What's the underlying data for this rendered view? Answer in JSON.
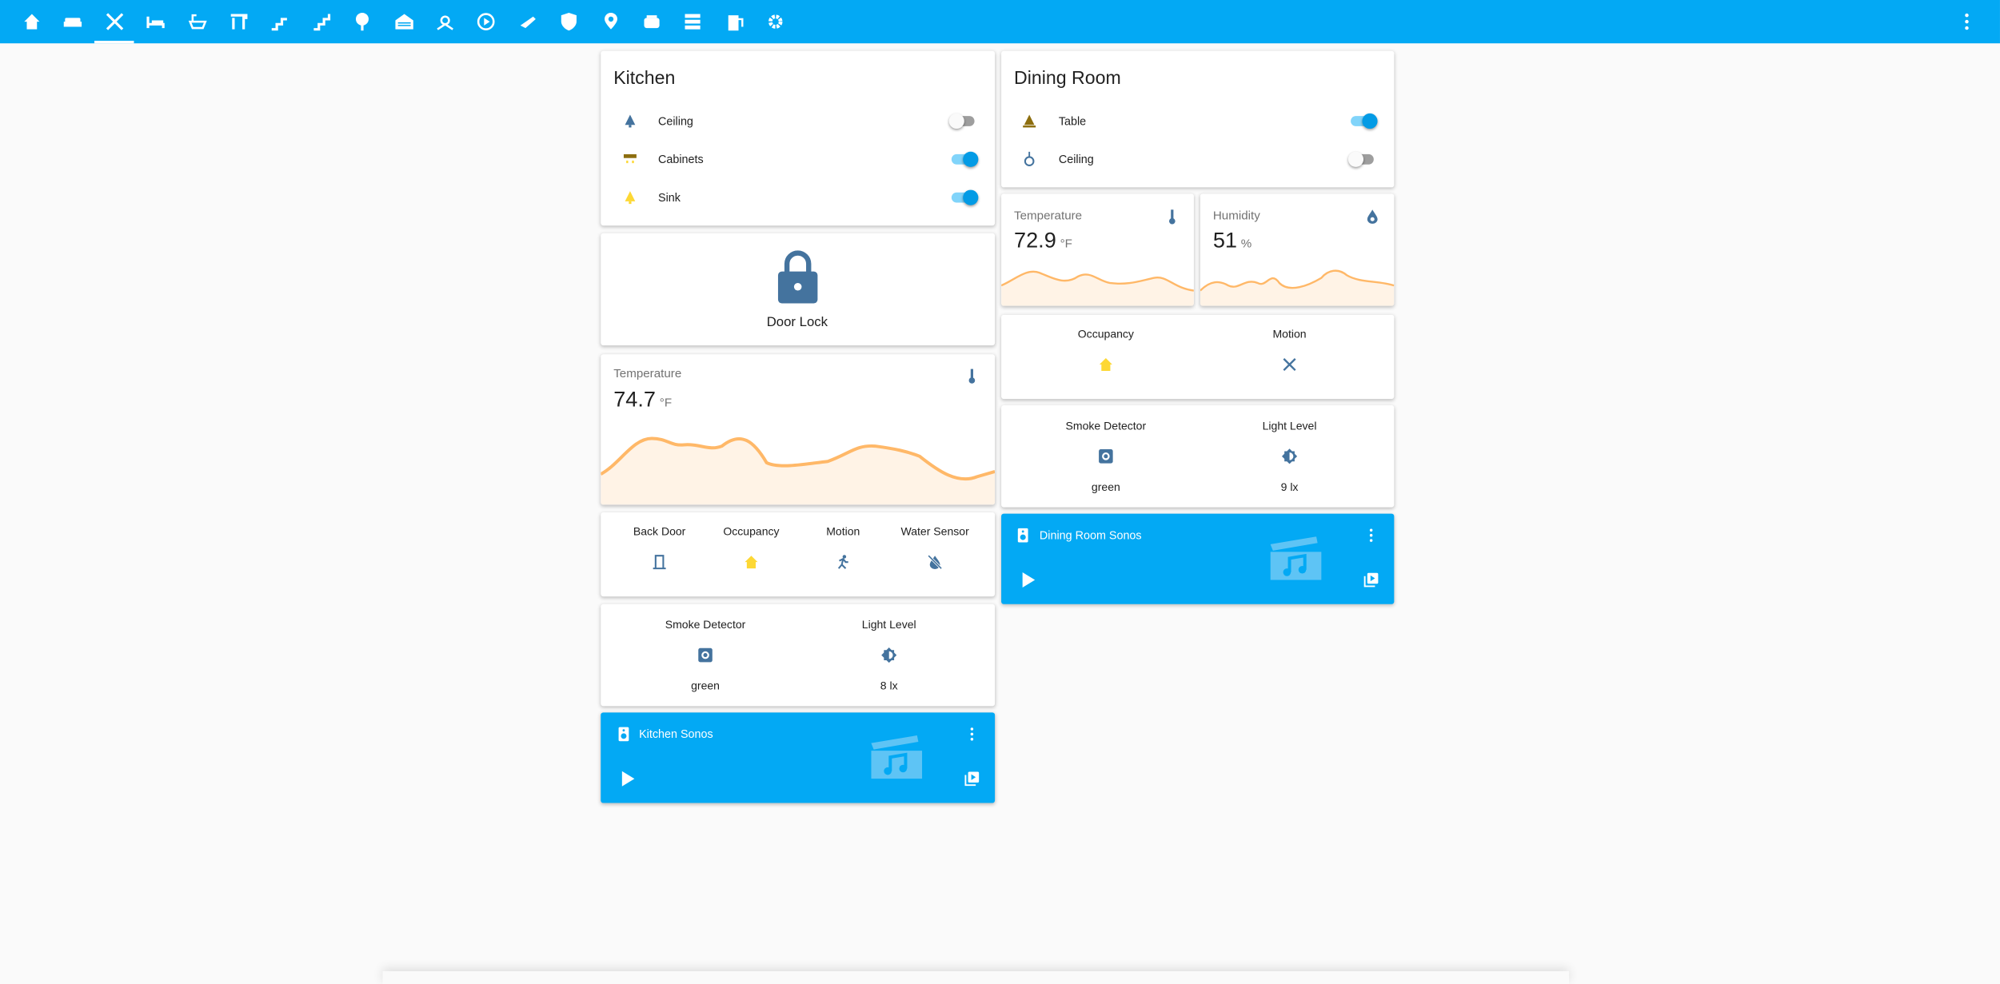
{
  "kitchen": {
    "title": "Kitchen",
    "entities": [
      {
        "name": "Ceiling",
        "on": false
      },
      {
        "name": "Cabinets",
        "on": true
      },
      {
        "name": "Sink",
        "on": true
      }
    ],
    "lock": {
      "name": "Door Lock"
    },
    "temperature": {
      "name": "Temperature",
      "value": "74.7",
      "unit": "°F"
    },
    "glance": [
      "Back Door",
      "Occupancy",
      "Motion",
      "Water Sensor"
    ],
    "sensors": [
      {
        "name": "Smoke Detector",
        "state": "green"
      },
      {
        "name": "Light Level",
        "state": "8 lx"
      }
    ],
    "media": {
      "name": "Kitchen Sonos"
    }
  },
  "dining_room": {
    "title": "Dining Room",
    "entities": [
      {
        "name": "Table",
        "on": true
      },
      {
        "name": "Ceiling",
        "on": false
      }
    ],
    "temperature": {
      "name": "Temperature",
      "value": "72.9",
      "unit": "°F"
    },
    "humidity": {
      "name": "Humidity",
      "value": "51",
      "unit": "%"
    },
    "glance": [
      "Occupancy",
      "Motion"
    ],
    "sensors": [
      {
        "name": "Smoke Detector",
        "state": "green"
      },
      {
        "name": "Light Level",
        "state": "9 lx"
      }
    ],
    "media": {
      "name": "Dining Room Sonos"
    }
  }
}
